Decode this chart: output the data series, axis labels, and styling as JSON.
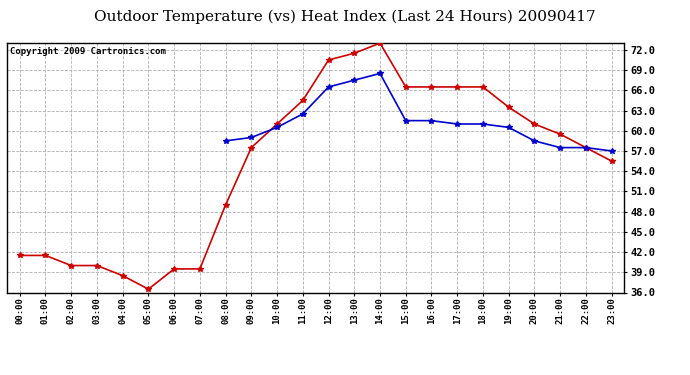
{
  "title": "Outdoor Temperature (vs) Heat Index (Last 24 Hours) 20090417",
  "copyright": "Copyright 2009 Cartronics.com",
  "hours": [
    "00:00",
    "01:00",
    "02:00",
    "03:00",
    "04:00",
    "05:00",
    "06:00",
    "07:00",
    "08:00",
    "09:00",
    "10:00",
    "11:00",
    "12:00",
    "13:00",
    "14:00",
    "15:00",
    "16:00",
    "17:00",
    "18:00",
    "19:00",
    "20:00",
    "21:00",
    "22:00",
    "23:00"
  ],
  "temp": [
    41.5,
    41.5,
    40.0,
    40.0,
    38.5,
    36.5,
    39.5,
    39.5,
    49.0,
    57.5,
    61.0,
    64.5,
    70.5,
    71.5,
    73.0,
    66.5,
    66.5,
    66.5,
    66.5,
    63.5,
    61.0,
    59.5,
    57.5,
    55.5
  ],
  "heat_index": [
    null,
    null,
    null,
    null,
    null,
    null,
    null,
    null,
    58.5,
    59.0,
    60.5,
    62.5,
    66.5,
    67.5,
    68.5,
    61.5,
    61.5,
    61.0,
    61.0,
    60.5,
    58.5,
    57.5,
    57.5,
    57.0
  ],
  "temp_color": "#cc0000",
  "heat_index_color": "#0000cc",
  "bg_color": "#ffffff",
  "plot_bg_color": "#ffffff",
  "grid_color": "#b0b0b0",
  "ylim": [
    36.0,
    73.0
  ],
  "yticks": [
    36.0,
    39.0,
    42.0,
    45.0,
    48.0,
    51.0,
    54.0,
    57.0,
    60.0,
    63.0,
    66.0,
    69.0,
    72.0
  ],
  "title_fontsize": 11,
  "copyright_fontsize": 6.5
}
